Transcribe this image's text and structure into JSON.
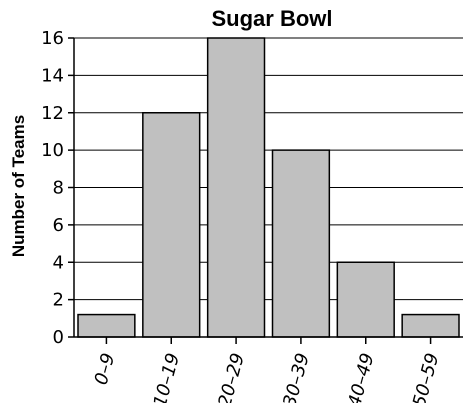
{
  "chart_data": {
    "type": "bar",
    "title": "Sugar Bowl",
    "xlabel": "",
    "ylabel": "Number of Teams",
    "categories": [
      "0–9",
      "10–19",
      "20–29",
      "30–39",
      "40–49",
      "50–59"
    ],
    "values": [
      1.2,
      12,
      16,
      10,
      4,
      1.2
    ],
    "ylim": [
      0,
      16
    ],
    "yticks": [
      0,
      2,
      4,
      6,
      8,
      10,
      12,
      14,
      16
    ],
    "grid": true,
    "legend": "none",
    "colors": {
      "bar": "#c0c0c0",
      "grid": "#000000"
    }
  }
}
